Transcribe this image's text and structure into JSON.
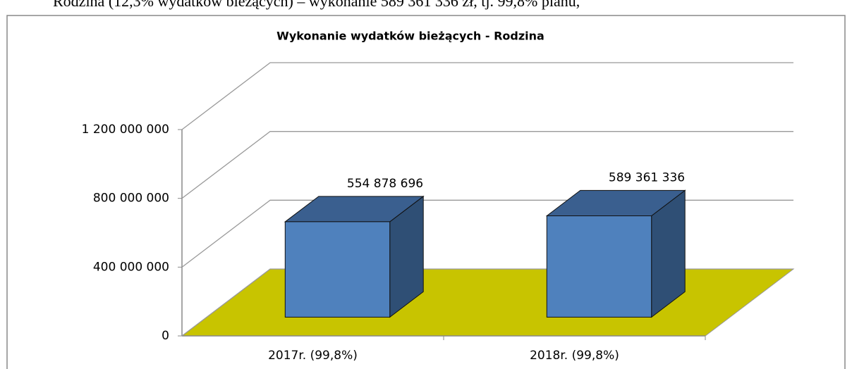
{
  "caption": "Rodzina (12,3% wydatków bieżących) – wykonanie 589 361 336 zł, tj. 99,8% planu,",
  "chart_data": {
    "type": "bar3d",
    "title": "Wykonanie wydatków bieżących - Rodzina",
    "categories": [
      "2017r. (99,8%)",
      "2018r. (99,8%)"
    ],
    "values": [
      554878696,
      589361336
    ],
    "value_labels": [
      "554 878 696",
      "589 361 336"
    ],
    "color": "#4f81bd",
    "floor_color": "#c8c400",
    "ylim": [
      0,
      1200000000
    ],
    "yticks": [
      0,
      {
        "value": 400000000,
        "label": "400 000 000"
      },
      {
        "value": 800000000,
        "label": "800 000 000"
      },
      {
        "value": 1200000000,
        "label": "1 200 000 000"
      }
    ],
    "grid": true
  }
}
